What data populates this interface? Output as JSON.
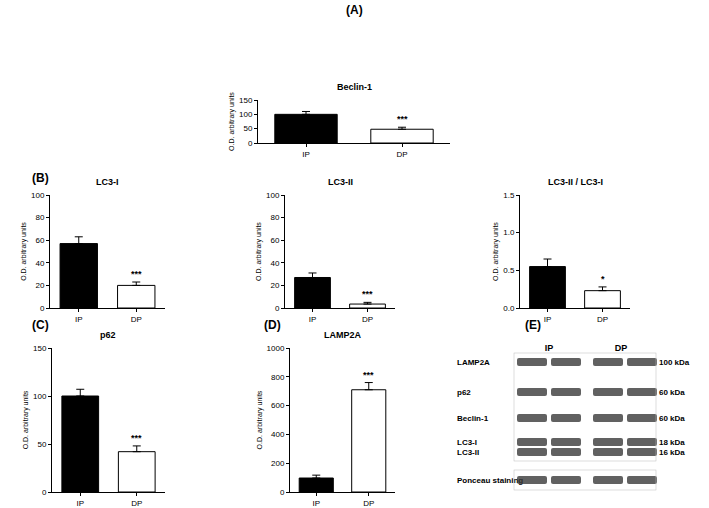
{
  "chart_data": [
    {
      "type": "bar",
      "panel": "(A)",
      "title": "Beclin-1",
      "y_label": "O.D. arbitrary units",
      "categories": [
        "IP",
        "DP"
      ],
      "values": [
        100,
        48
      ],
      "errors": [
        10,
        7
      ],
      "colors": [
        "#000000",
        "#ffffff"
      ],
      "ylim": [
        0,
        150
      ],
      "yticks": [
        0,
        50,
        100,
        150
      ],
      "annotations": [
        {
          "category": "DP",
          "text": "***"
        }
      ]
    },
    {
      "type": "bar",
      "panel": "(B)",
      "title": "LC3-I",
      "y_label": "O.D. arbitrary units",
      "categories": [
        "IP",
        "DP"
      ],
      "values": [
        57,
        20
      ],
      "errors": [
        6,
        3
      ],
      "colors": [
        "#000000",
        "#ffffff"
      ],
      "ylim": [
        0,
        100
      ],
      "yticks": [
        0,
        20,
        40,
        60,
        80,
        100
      ],
      "annotations": [
        {
          "category": "DP",
          "text": "***"
        }
      ]
    },
    {
      "type": "bar",
      "title": "LC3-II",
      "y_label": "O.D. arbitrary units",
      "categories": [
        "IP",
        "DP"
      ],
      "values": [
        27,
        3.5
      ],
      "errors": [
        4,
        1.5
      ],
      "colors": [
        "#000000",
        "#ffffff"
      ],
      "ylim": [
        0,
        100
      ],
      "yticks": [
        0,
        20,
        40,
        60,
        80,
        100
      ],
      "annotations": [
        {
          "category": "DP",
          "text": "***"
        }
      ]
    },
    {
      "type": "bar",
      "title": "LC3-II / LC3-I",
      "y_label": "O.D. arbitrary units",
      "categories": [
        "IP",
        "DP"
      ],
      "values": [
        0.55,
        0.23
      ],
      "errors": [
        0.1,
        0.05
      ],
      "colors": [
        "#000000",
        "#ffffff"
      ],
      "ylim": [
        0,
        1.5
      ],
      "yticks": [
        {
          "value": 0,
          "label": "0.0"
        },
        {
          "value": 0.5,
          "label": "0.5"
        },
        {
          "value": 1,
          "label": "1.0"
        },
        {
          "value": 1.5,
          "label": "1.5"
        }
      ],
      "annotations": [
        {
          "category": "DP",
          "text": "*"
        }
      ]
    },
    {
      "type": "bar",
      "panel": "(C)",
      "title": "p62",
      "y_label": "O.D. arbitrary units",
      "categories": [
        "IP",
        "DP"
      ],
      "values": [
        100,
        42
      ],
      "errors": [
        7,
        6
      ],
      "colors": [
        "#000000",
        "#ffffff"
      ],
      "ylim": [
        0,
        150
      ],
      "yticks": [
        0,
        50,
        100,
        150
      ],
      "annotations": [
        {
          "category": "DP",
          "text": "***"
        }
      ]
    },
    {
      "type": "bar",
      "panel": "(D)",
      "title": "LAMP2A",
      "y_label": "O.D. arbitrary units",
      "categories": [
        "IP",
        "DP"
      ],
      "values": [
        97,
        710
      ],
      "errors": [
        20,
        50
      ],
      "colors": [
        "#000000",
        "#ffffff"
      ],
      "ylim": [
        0,
        1000
      ],
      "yticks": [
        0,
        200,
        400,
        600,
        800,
        1000
      ],
      "annotations": [
        {
          "category": "DP",
          "text": "***"
        }
      ]
    }
  ],
  "blot": {
    "panel": "(E)",
    "lanes": [
      "IP",
      "DP"
    ],
    "rows": [
      {
        "label": "LAMP2A",
        "size": "100 kDa"
      },
      {
        "label": "p62",
        "size": "60 kDa"
      },
      {
        "label": "Beclin-1",
        "size": "60 kDa"
      },
      {
        "label": "LC3-I",
        "size": "18 kDa"
      },
      {
        "label": "LC3-II",
        "size": "16 kDa"
      },
      {
        "label": "Ponceau staining"
      }
    ]
  }
}
